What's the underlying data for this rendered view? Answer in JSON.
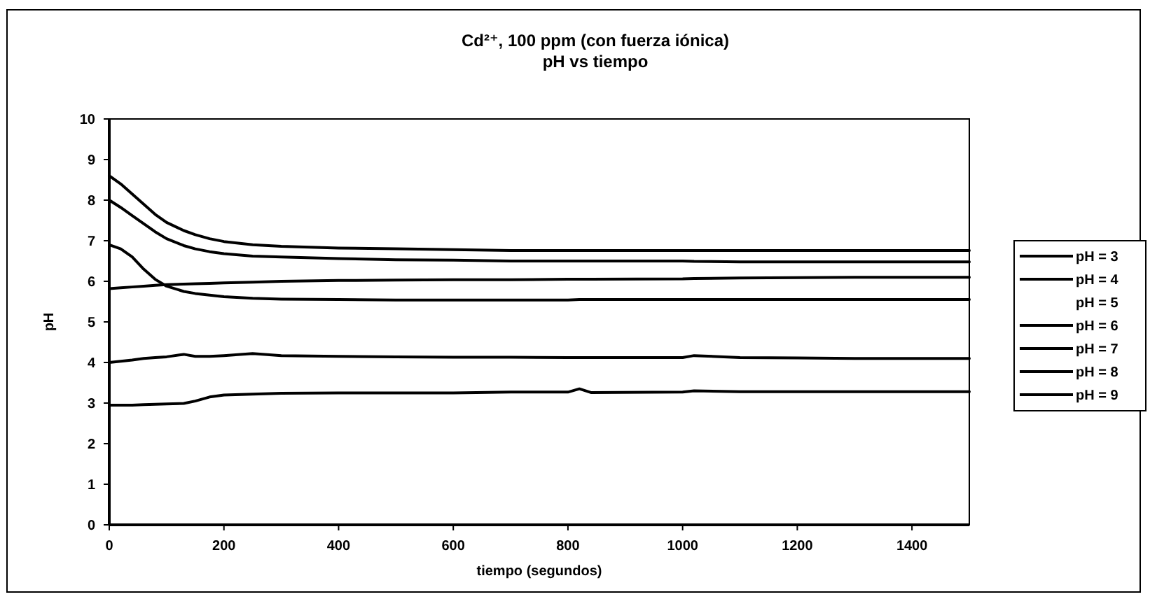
{
  "chart_data": {
    "type": "line",
    "title": "Cd²⁺, 100 ppm (con fuerza iónica)",
    "subtitle": "pH vs tiempo",
    "xlabel": "tiempo (segundos)",
    "ylabel": "pH",
    "x": [
      0,
      20,
      40,
      60,
      80,
      100,
      130,
      150,
      175,
      200,
      250,
      300,
      400,
      500,
      600,
      700,
      800,
      820,
      840,
      1000,
      1020,
      1100,
      1200,
      1300,
      1400,
      1500
    ],
    "xlim": [
      0,
      1500
    ],
    "xticks": [
      0,
      200,
      400,
      600,
      800,
      1000,
      1200,
      1400
    ],
    "ylim": [
      0,
      10
    ],
    "yticks": [
      0,
      1,
      2,
      3,
      4,
      5,
      6,
      7,
      8,
      9,
      10
    ],
    "legend": "right",
    "series": [
      {
        "name": "pH = 3",
        "color": "#000000",
        "values": [
          2.95,
          2.95,
          2.95,
          2.96,
          2.97,
          2.98,
          2.99,
          3.05,
          3.15,
          3.2,
          3.22,
          3.24,
          3.25,
          3.25,
          3.25,
          3.27,
          3.27,
          3.35,
          3.26,
          3.27,
          3.3,
          3.28,
          3.28,
          3.28,
          3.28,
          3.28
        ]
      },
      {
        "name": "pH = 4",
        "color": "#000000",
        "values": [
          4.0,
          4.03,
          4.06,
          4.1,
          4.12,
          4.14,
          4.2,
          4.15,
          4.15,
          4.17,
          4.22,
          4.17,
          4.15,
          4.14,
          4.13,
          4.13,
          4.12,
          4.12,
          4.12,
          4.12,
          4.17,
          4.12,
          4.11,
          4.1,
          4.1,
          4.1
        ]
      },
      {
        "name": "pH = 5",
        "values": [
          null,
          null,
          null,
          null,
          null,
          null,
          null,
          null,
          null,
          null,
          null,
          null,
          null,
          null,
          null,
          null,
          null,
          null,
          null,
          null,
          null,
          null,
          null,
          null,
          null,
          null
        ]
      },
      {
        "name": "pH = 6",
        "color": "#000000",
        "values": [
          5.82,
          5.84,
          5.86,
          5.88,
          5.9,
          5.92,
          5.93,
          5.94,
          5.95,
          5.96,
          5.98,
          6.0,
          6.02,
          6.03,
          6.04,
          6.04,
          6.05,
          6.05,
          6.05,
          6.06,
          6.07,
          6.08,
          6.09,
          6.1,
          6.1,
          6.1
        ]
      },
      {
        "name": "pH = 7",
        "color": "#000000",
        "values": [
          6.9,
          6.8,
          6.6,
          6.3,
          6.05,
          5.88,
          5.75,
          5.7,
          5.66,
          5.62,
          5.58,
          5.56,
          5.55,
          5.54,
          5.54,
          5.54,
          5.54,
          5.55,
          5.55,
          5.55,
          5.55,
          5.55,
          5.55,
          5.55,
          5.55,
          5.55
        ]
      },
      {
        "name": "pH = 8",
        "color": "#000000",
        "values": [
          8.0,
          7.82,
          7.62,
          7.42,
          7.22,
          7.05,
          6.88,
          6.8,
          6.73,
          6.68,
          6.62,
          6.6,
          6.56,
          6.53,
          6.52,
          6.5,
          6.5,
          6.5,
          6.5,
          6.5,
          6.49,
          6.48,
          6.48,
          6.48,
          6.48,
          6.48
        ]
      },
      {
        "name": "pH = 9",
        "color": "#000000",
        "values": [
          8.6,
          8.4,
          8.15,
          7.9,
          7.65,
          7.45,
          7.25,
          7.15,
          7.05,
          6.98,
          6.9,
          6.86,
          6.82,
          6.8,
          6.78,
          6.76,
          6.76,
          6.76,
          6.76,
          6.76,
          6.76,
          6.76,
          6.76,
          6.76,
          6.76,
          6.76
        ]
      }
    ]
  }
}
